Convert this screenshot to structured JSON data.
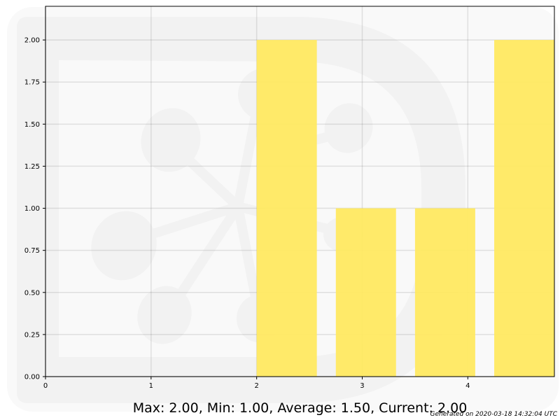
{
  "chart_data": {
    "type": "bar",
    "x": [
      2,
      2.75,
      3.5,
      4.25
    ],
    "values": [
      2,
      1,
      1,
      2
    ],
    "bar_width": 0.57,
    "xlim": [
      0,
      4.82
    ],
    "ylim": [
      0,
      2.2
    ],
    "xticks": [
      "0",
      "1",
      "2",
      "3",
      "4"
    ],
    "yticks": [
      "0.00",
      "0.25",
      "0.50",
      "0.75",
      "1.00",
      "1.25",
      "1.50",
      "1.75",
      "2.00"
    ],
    "grid": true,
    "bar_color": "#ffe961",
    "background_color": "#f9f9f9",
    "title": "",
    "xlabel": "",
    "ylabel": ""
  },
  "summary": "Max: 2.00, Min: 1.00, Average: 1.50, Current: 2.00",
  "generated": "Generated on 2020-03-18 14:32:04 UTC"
}
